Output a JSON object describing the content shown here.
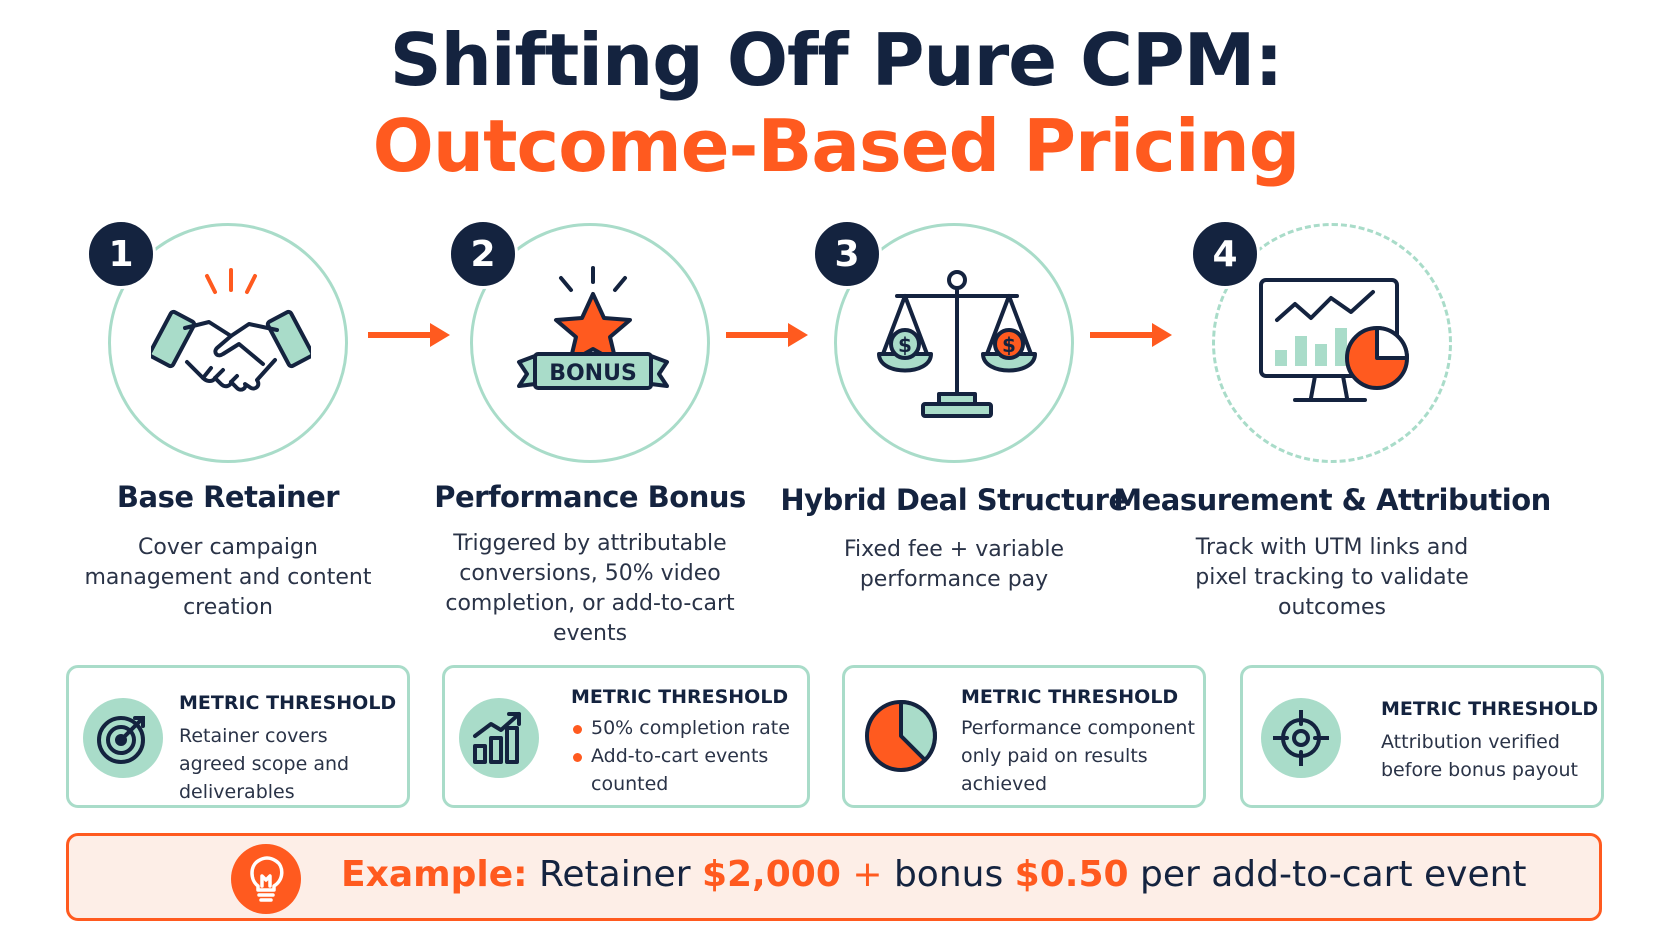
{
  "title": {
    "line1": "Shifting Off Pure CPM:",
    "line2": "Outcome-Based Pricing"
  },
  "steps": [
    {
      "number": "1",
      "title": "Base Retainer",
      "description": "Cover campaign management and content creation",
      "icon": "handshake-icon"
    },
    {
      "number": "2",
      "title": "Performance Bonus",
      "description": "Triggered by attributable conversions, 50% video completion, or add-to-cart events",
      "icon": "bonus-star-icon",
      "icon_text": "BONUS"
    },
    {
      "number": "3",
      "title": "Hybrid Deal Structure",
      "description": "Fixed fee + variable performance pay",
      "icon": "balance-scale-icon",
      "icon_text": "$"
    },
    {
      "number": "4",
      "title": "Measurement & Attribution",
      "description": "Track with UTM links and pixel tracking to validate outcomes",
      "icon": "analytics-monitor-icon"
    }
  ],
  "metrics": [
    {
      "heading": "METRIC THRESHOLD",
      "body": "Retainer covers agreed scope and deliverables",
      "icon": "target-icon"
    },
    {
      "heading": "METRIC THRESHOLD",
      "bullets": [
        "50% completion rate",
        "Add-to-cart events counted"
      ],
      "icon": "growth-chart-icon"
    },
    {
      "heading": "METRIC THRESHOLD",
      "body": "Performance component only paid on results achieved",
      "icon": "pie-chart-icon"
    },
    {
      "heading": "METRIC THRESHOLD",
      "body": "Attribution verified before bonus payout",
      "icon": "crosshair-icon"
    }
  ],
  "example": {
    "label": "Example:",
    "text1": "Retainer",
    "amount1": "$2,000",
    "plus": "+",
    "text2": "bonus",
    "amount2": "$0.50",
    "text3": "per add-to-cart event",
    "icon": "lightbulb-icon"
  },
  "colors": {
    "navy": "#14233f",
    "orange": "#ff5a1f",
    "mint": "#a9dcc9",
    "peach": "#fdeee7"
  }
}
